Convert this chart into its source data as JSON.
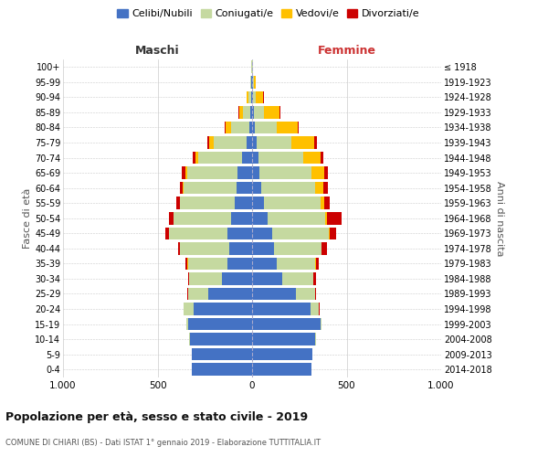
{
  "age_groups": [
    "0-4",
    "5-9",
    "10-14",
    "15-19",
    "20-24",
    "25-29",
    "30-34",
    "35-39",
    "40-44",
    "45-49",
    "50-54",
    "55-59",
    "60-64",
    "65-69",
    "70-74",
    "75-79",
    "80-84",
    "85-89",
    "90-94",
    "95-99",
    "100+"
  ],
  "birth_years": [
    "2014-2018",
    "2009-2013",
    "2004-2008",
    "1999-2003",
    "1994-1998",
    "1989-1993",
    "1984-1988",
    "1979-1983",
    "1974-1978",
    "1969-1973",
    "1964-1968",
    "1959-1963",
    "1954-1958",
    "1949-1953",
    "1944-1948",
    "1939-1943",
    "1934-1938",
    "1929-1933",
    "1924-1928",
    "1919-1923",
    "≤ 1918"
  ],
  "maschi": {
    "celibi": [
      320,
      320,
      330,
      340,
      310,
      230,
      160,
      130,
      120,
      130,
      110,
      90,
      80,
      75,
      55,
      30,
      15,
      10,
      5,
      3,
      2
    ],
    "coniugati": [
      0,
      1,
      2,
      10,
      50,
      110,
      175,
      210,
      260,
      310,
      305,
      290,
      280,
      270,
      230,
      175,
      95,
      40,
      15,
      5,
      2
    ],
    "vedovi": [
      0,
      0,
      0,
      0,
      0,
      0,
      0,
      1,
      1,
      1,
      2,
      3,
      5,
      10,
      15,
      20,
      30,
      20,
      8,
      3,
      1
    ],
    "divorziati": [
      0,
      0,
      0,
      0,
      1,
      3,
      5,
      10,
      10,
      18,
      22,
      20,
      18,
      15,
      15,
      10,
      5,
      3,
      2,
      0,
      0
    ]
  },
  "femmine": {
    "nubili": [
      315,
      320,
      335,
      360,
      310,
      230,
      160,
      130,
      115,
      105,
      80,
      65,
      50,
      40,
      35,
      25,
      15,
      10,
      5,
      3,
      2
    ],
    "coniugate": [
      0,
      0,
      1,
      8,
      45,
      105,
      165,
      205,
      250,
      300,
      305,
      295,
      285,
      275,
      235,
      185,
      115,
      55,
      15,
      5,
      2
    ],
    "vedove": [
      0,
      0,
      0,
      0,
      0,
      0,
      1,
      2,
      3,
      5,
      10,
      20,
      40,
      65,
      90,
      120,
      110,
      80,
      40,
      10,
      2
    ],
    "divorziate": [
      0,
      0,
      0,
      0,
      2,
      5,
      10,
      15,
      30,
      35,
      80,
      30,
      25,
      20,
      15,
      12,
      8,
      5,
      2,
      1,
      0
    ]
  },
  "colors": {
    "celibi": "#4472c4",
    "coniugati": "#c5d9a0",
    "vedovi": "#ffc000",
    "divorziati": "#cc0000"
  },
  "legend_labels": [
    "Celibi/Nubili",
    "Coniugati/e",
    "Vedovi/e",
    "Divorziati/e"
  ],
  "xlim": 1000,
  "title": "Popolazione per età, sesso e stato civile - 2019",
  "subtitle": "COMUNE DI CHIARI (BS) - Dati ISTAT 1° gennaio 2019 - Elaborazione TUTTITALIA.IT",
  "ylabel_left": "Fasce di età",
  "ylabel_right": "Anni di nascita",
  "xlabel_left": "Maschi",
  "xlabel_right": "Femmine",
  "bg_color": "#ffffff",
  "grid_color": "#cccccc"
}
